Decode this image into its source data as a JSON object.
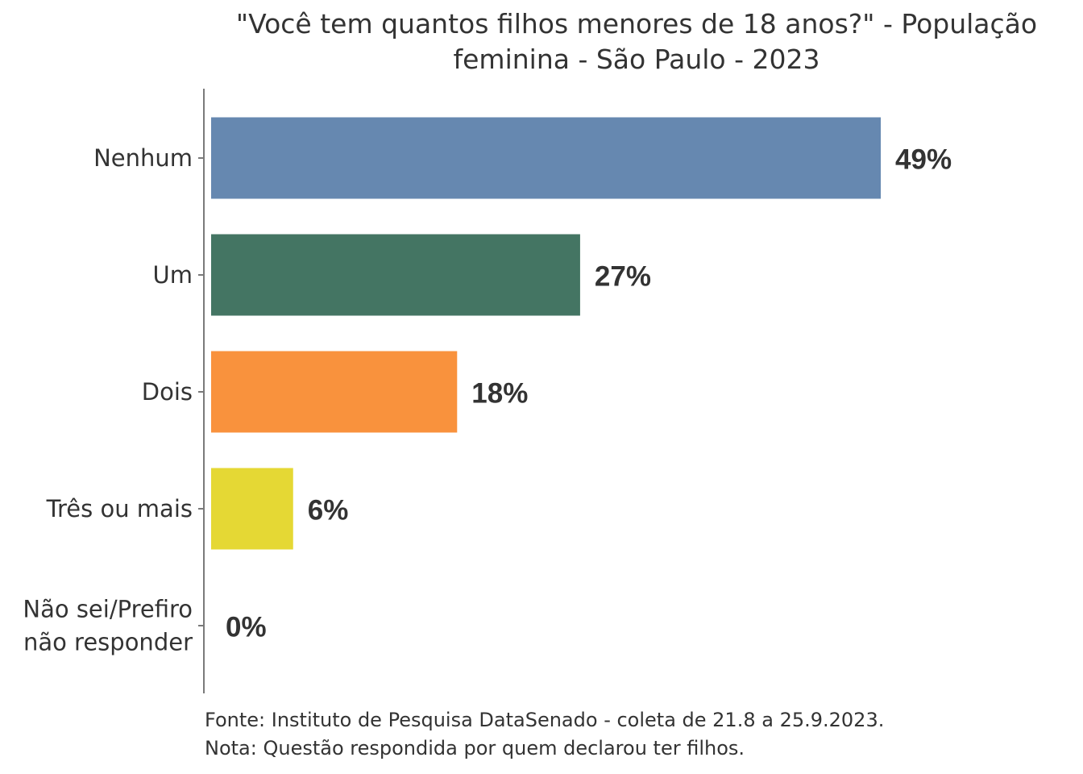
{
  "chart_data": {
    "type": "bar",
    "orientation": "horizontal",
    "title": [
      "\"Você tem quantos filhos menores de 18 anos?\" - População",
      "feminina - São Paulo - 2023"
    ],
    "categories": [
      [
        "Nenhum"
      ],
      [
        "Um"
      ],
      [
        "Dois"
      ],
      [
        "Três ou mais"
      ],
      [
        "Não sei/Prefiro",
        "não responder"
      ]
    ],
    "values": [
      49,
      27,
      18,
      6,
      0
    ],
    "value_labels": [
      "49%",
      "27%",
      "18%",
      "6%",
      "0%"
    ],
    "colors": [
      "#6688b0",
      "#447563",
      "#f9923d",
      "#e5d834",
      "#888888"
    ],
    "xlabel": "",
    "ylabel": "",
    "grid": false,
    "legend": "none"
  },
  "footer": {
    "source": "Fonte: Instituto de Pesquisa DataSenado - coleta de 21.8 a 25.9.2023.",
    "note": "Nota: Questão respondida por quem declarou ter filhos."
  }
}
